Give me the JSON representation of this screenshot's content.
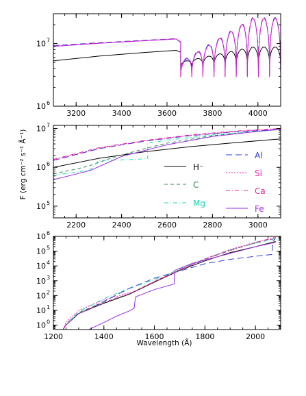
{
  "chart_data": [
    {
      "type": "line",
      "panel": "top",
      "xlim": [
        3100,
        4100
      ],
      "ylim": [
        1000000,
        30000000
      ],
      "yscale": "log",
      "xticks": [
        "3200",
        "3400",
        "3600",
        "3800",
        "4000"
      ],
      "yticks": [
        {
          "label": "10",
          "exp": "7",
          "value": 10000000
        },
        {
          "label": "10",
          "exp": "6",
          "value": 1000000
        }
      ],
      "series": [
        {
          "color": "#000000",
          "dash": "",
          "x": [
            3100,
            3300,
            3500,
            3640,
            3660
          ],
          "y": [
            5300000,
            6300000,
            7200000,
            7800000,
            7300000
          ],
          "comb": {
            "start": 3660,
            "end": 4100,
            "peak": 8800000,
            "dip": 4200000
          }
        },
        {
          "color": "#2e3cdc",
          "dash": "8,5",
          "x": [
            3100,
            3300,
            3500,
            3640,
            3660
          ],
          "y": [
            9300000,
            10300000,
            11300000,
            12000000,
            10600000
          ],
          "comb": {
            "start": 3660,
            "end": 4100,
            "peak": 26000000,
            "dip": 3000000
          }
        },
        {
          "color": "#9a2fe0",
          "dash": "",
          "x": [
            3100,
            3300,
            3500,
            3640,
            3660
          ],
          "y": [
            9000000,
            10100000,
            11100000,
            11800000,
            10400000
          ],
          "comb": {
            "start": 3660,
            "end": 4100,
            "peak": 25000000,
            "dip": 2900000
          }
        },
        {
          "color": "#ff1fb0",
          "dash": "2,2",
          "x": [
            3100,
            3300,
            3500,
            3640,
            3660
          ],
          "y": [
            9100000,
            10200000,
            11200000,
            11900000,
            10500000
          ],
          "comb": {
            "start": 3660,
            "end": 4100,
            "peak": 25500000,
            "dip": 2950000
          }
        }
      ]
    },
    {
      "type": "line",
      "panel": "middle",
      "xlim": [
        2100,
        3100
      ],
      "ylim": [
        50000,
        12000000
      ],
      "yscale": "log",
      "xticks": [
        "2200",
        "2400",
        "2600",
        "2800",
        "3000"
      ],
      "yticks": [
        {
          "label": "10",
          "exp": "7",
          "value": 10000000
        },
        {
          "label": "10",
          "exp": "6",
          "value": 1000000
        },
        {
          "label": "10",
          "exp": "5",
          "value": 100000
        }
      ],
      "ylabel": "F (erg cm⁻² s⁻¹ Å⁻¹)",
      "legend": [
        {
          "label": "H⁻",
          "color": "#000000",
          "dash": ""
        },
        {
          "label": "C",
          "color": "#2a8a4a",
          "dash": "5,4"
        },
        {
          "label": "Mg",
          "color": "#18d6b4",
          "dash": "6,3,1,3"
        },
        {
          "label": "Al",
          "color": "#2e3cdc",
          "dash": "9,5"
        },
        {
          "label": "Si",
          "color": "#ff1fb0",
          "dash": "2,2"
        },
        {
          "label": "Ca",
          "color": "#e0289a",
          "dash": "6,3,1,3"
        },
        {
          "label": "Fe",
          "color": "#9a2fe0",
          "dash": ""
        }
      ],
      "series": [
        {
          "name": "H⁻",
          "color": "#000000",
          "dash": "",
          "x": [
            2100,
            2300,
            2500,
            2700,
            2900,
            3100
          ],
          "y": [
            1000000,
            1700000,
            2500000,
            3400000,
            4300000,
            5400000
          ]
        },
        {
          "name": "C",
          "color": "#2a8a4a",
          "dash": "5,4",
          "x": [
            2100,
            2200,
            2260,
            2350,
            2500,
            2600,
            2800,
            3000,
            3100
          ],
          "y": [
            680000,
            900000,
            1100000,
            1700000,
            3000000,
            4200000,
            6500000,
            8500000,
            9500000
          ]
        },
        {
          "name": "Mg",
          "color": "#18d6b4",
          "dash": "6,3,1,3",
          "x": [
            2100,
            2200,
            2260,
            2300,
            2400,
            2480,
            2515,
            2515,
            2600,
            2800,
            3000,
            3100
          ],
          "y": [
            620000,
            750000,
            850000,
            1500000,
            1550000,
            1620000,
            1700000,
            4200000,
            5000000,
            6800000,
            8500000,
            9300000
          ]
        },
        {
          "name": "Al",
          "color": "#2e3cdc",
          "dash": "9,5",
          "x": [
            2100,
            2300,
            2500,
            2700,
            2900,
            3100
          ],
          "y": [
            1500000,
            3000000,
            4700000,
            6500000,
            8200000,
            9500000
          ]
        },
        {
          "name": "Si",
          "color": "#ff1fb0",
          "dash": "2,2",
          "x": [
            2100,
            2300,
            2500,
            2700,
            2900,
            3100
          ],
          "y": [
            1550000,
            3100000,
            4800000,
            6600000,
            8400000,
            9800000
          ]
        },
        {
          "name": "Ca",
          "color": "#e0289a",
          "dash": "6,3,1,3",
          "x": [
            2100,
            2300,
            2500,
            2700,
            2900,
            3100
          ],
          "y": [
            1600000,
            3200000,
            4900000,
            6800000,
            8600000,
            10000000
          ]
        },
        {
          "name": "Fe",
          "color": "#9a2fe0",
          "dash": "",
          "x": [
            2100,
            2260,
            2400,
            2600,
            2800,
            3000,
            3100
          ],
          "y": [
            480000,
            820000,
            1900000,
            3800000,
            6200000,
            8400000,
            9500000
          ]
        }
      ]
    },
    {
      "type": "line",
      "panel": "bottom",
      "xlim": [
        1200,
        2100
      ],
      "ylim": [
        0.5,
        1000000
      ],
      "yscale": "log",
      "xticks": [
        "1200",
        "1400",
        "1600",
        "1800",
        "2000"
      ],
      "yticks": [
        {
          "label": "10",
          "exp": "6",
          "value": 1000000
        },
        {
          "label": "10",
          "exp": "5",
          "value": 100000
        },
        {
          "label": "10",
          "exp": "4",
          "value": 10000
        },
        {
          "label": "10",
          "exp": "3",
          "value": 1000
        },
        {
          "label": "10",
          "exp": "2",
          "value": 100
        },
        {
          "label": "10",
          "exp": "1",
          "value": 10
        },
        {
          "label": "10",
          "exp": "0",
          "value": 1
        }
      ],
      "xlabel": "Wavelength (Å)",
      "series": [
        {
          "name": "H⁻",
          "color": "#000000",
          "dash": "",
          "x": [
            1238,
            1250,
            1300,
            1400,
            1500,
            1600,
            1700,
            1800,
            1900,
            2000,
            2080
          ],
          "y": [
            0.5,
            1,
            6,
            30,
            120,
            800,
            5000,
            22000,
            80000,
            200000,
            450000
          ]
        },
        {
          "name": "C",
          "color": "#2a8a4a",
          "dash": "5,4",
          "x": [
            1238,
            1250,
            1300,
            1400,
            1500,
            1600,
            1700,
            1800,
            1900,
            2000,
            2080
          ],
          "y": [
            0.5,
            1,
            7,
            35,
            130,
            900,
            5500,
            30000,
            120000,
            350000,
            700000
          ]
        },
        {
          "name": "Mg",
          "color": "#18d6b4",
          "dash": "6,3,1,3",
          "x": [
            1238,
            1250,
            1300,
            1400,
            1500,
            1600,
            1700,
            1800,
            1900,
            2000,
            2080
          ],
          "y": [
            0.5,
            1.2,
            8,
            60,
            300,
            1200,
            6000,
            30000,
            120000,
            350000,
            700000
          ]
        },
        {
          "name": "Al",
          "color": "#2e3cdc",
          "dash": "9,5",
          "x": [
            1238,
            1250,
            1300,
            1400,
            1500,
            1600,
            1700,
            1750,
            1800,
            1900,
            2000,
            2065,
            2070,
            2080
          ],
          "y": [
            0.5,
            1,
            6,
            40,
            300,
            1500,
            4500,
            8000,
            14000,
            28000,
            45000,
            60000,
            500000,
            700000
          ]
        },
        {
          "name": "Si",
          "color": "#ff1fb0",
          "dash": "2,2",
          "x": [
            1238,
            1250,
            1300,
            1400,
            1500,
            1520,
            1600,
            1700,
            1800,
            1900,
            2000,
            2080
          ],
          "y": [
            0.5,
            1.5,
            10,
            50,
            150,
            180,
            900,
            5500,
            30000,
            130000,
            400000,
            800000
          ]
        },
        {
          "name": "Ca",
          "color": "#e0289a",
          "dash": "6,3,1,3",
          "x": [
            1238,
            1250,
            1300,
            1400,
            1500,
            1600,
            1700,
            1800,
            1900,
            2000,
            2080
          ],
          "y": [
            0.5,
            1,
            6,
            32,
            130,
            850,
            5200,
            28000,
            110000,
            380000,
            900000
          ]
        },
        {
          "name": "Fe",
          "color": "#9a2fe0",
          "dash": "",
          "x": [
            1340,
            1400,
            1450,
            1500,
            1520,
            1525,
            1600,
            1678,
            1680,
            1750,
            1800,
            1900,
            2000,
            2080
          ],
          "y": [
            0.5,
            1.5,
            4,
            9,
            14,
            80,
            250,
            600,
            5000,
            15000,
            25000,
            70000,
            200000,
            400000
          ]
        }
      ]
    }
  ]
}
